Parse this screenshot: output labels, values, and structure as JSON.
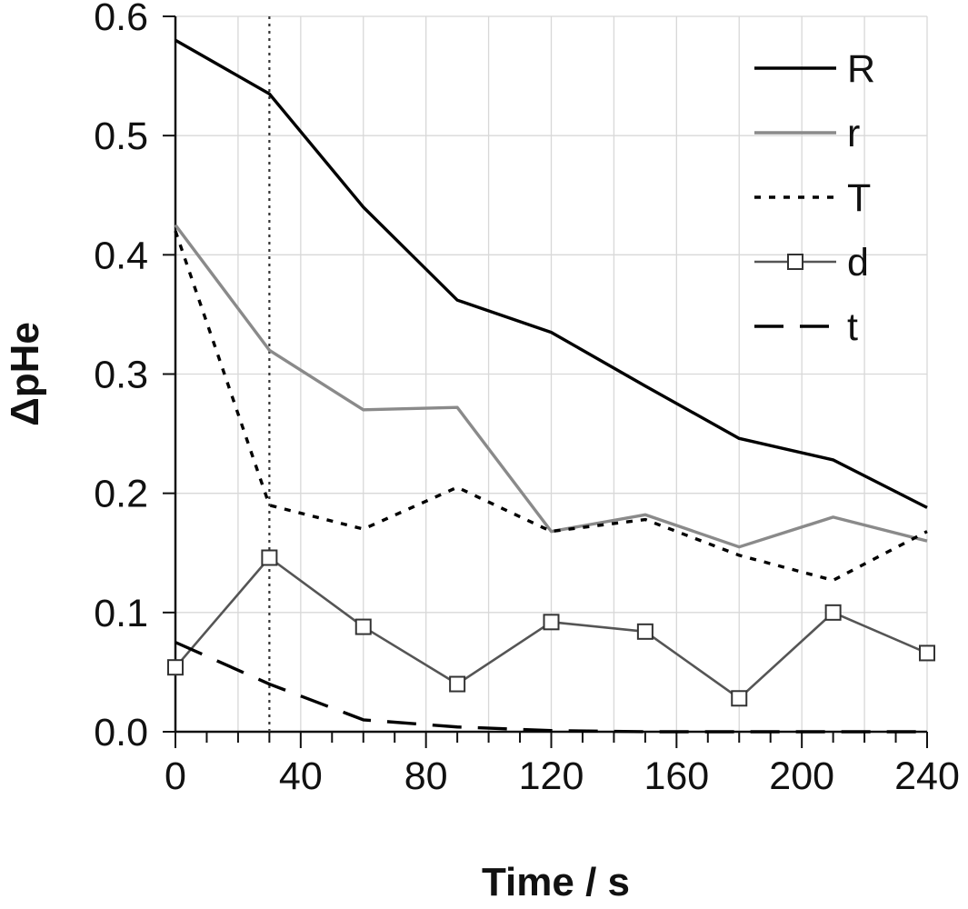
{
  "chart_data": {
    "type": "line",
    "xlabel": "Time / s",
    "ylabel": "ΔpHe",
    "xlim": [
      0,
      240
    ],
    "ylim": [
      0,
      0.6
    ],
    "xticks": [
      0,
      40,
      80,
      120,
      160,
      200,
      240
    ],
    "xtick_labels": [
      "0",
      "40",
      "80",
      "120",
      "160",
      "200",
      "240"
    ],
    "yticks": [
      0,
      0.1,
      0.2,
      0.3,
      0.4,
      0.5,
      0.6
    ],
    "ytick_labels": [
      "0.0",
      "0.1",
      "0.2",
      "0.3",
      "0.4",
      "0.5",
      "0.6"
    ],
    "grid": true,
    "legend_position": "top-right",
    "reference_line": {
      "x": 30,
      "style": "dotted"
    },
    "x": [
      0,
      30,
      60,
      90,
      120,
      150,
      180,
      210,
      240
    ],
    "series": [
      {
        "name": "R",
        "color": "#000000",
        "style": "solid",
        "marker": "none",
        "values": [
          0.58,
          0.535,
          0.44,
          0.362,
          0.335,
          0.29,
          0.246,
          0.228,
          0.188
        ]
      },
      {
        "name": "r",
        "color": "#8a8a8a",
        "style": "solid",
        "marker": "none",
        "values": [
          0.425,
          0.32,
          0.27,
          0.272,
          0.168,
          0.182,
          0.155,
          0.18,
          0.16
        ]
      },
      {
        "name": "T",
        "color": "#000000",
        "style": "dotted",
        "marker": "none",
        "values": [
          0.42,
          0.19,
          0.17,
          0.205,
          0.168,
          0.178,
          0.148,
          0.127,
          0.168
        ]
      },
      {
        "name": "d",
        "color": "#555555",
        "style": "solid",
        "marker": "square",
        "values": [
          0.054,
          0.146,
          0.088,
          0.04,
          0.092,
          0.084,
          0.028,
          0.1,
          0.066
        ]
      },
      {
        "name": "t",
        "color": "#000000",
        "style": "dashed",
        "marker": "none",
        "values": [
          0.075,
          0.04,
          0.01,
          0.004,
          0.001,
          0.0,
          0.0,
          0.0,
          0.0
        ]
      }
    ]
  }
}
